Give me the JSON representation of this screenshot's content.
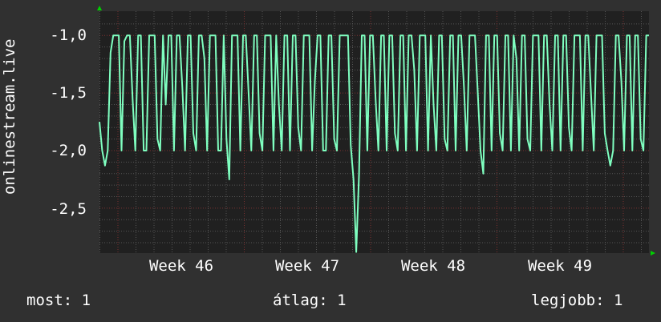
{
  "chart_data": {
    "type": "line",
    "title": "",
    "xlabel": "",
    "ylabel": "onlinestream.live",
    "x_tick_labels": [
      "Week 46",
      "Week 47",
      "Week 48",
      "Week 49"
    ],
    "y_ticks": [
      -1.0,
      -1.5,
      -2.0,
      -2.5
    ],
    "y_tick_labels": [
      "-1,0",
      "-1,5",
      "-2,0",
      "-2,5"
    ],
    "ylim": [
      -2.89,
      -0.79
    ],
    "grid": true,
    "colors": {
      "line": "#7fffc0",
      "background": "#303030",
      "plot": "#202020",
      "major_grid": "#7a3030",
      "minor_grid": "#555555",
      "arrow": "#00d000"
    },
    "series": [
      {
        "values": [
          -1.75,
          -2.0,
          -2.13,
          -2.0,
          -1.15,
          -1.0,
          -1.0,
          -1.0,
          -2.0,
          -1.05,
          -1.0,
          -1.0,
          -1.55,
          -2.0,
          -1.0,
          -1.0,
          -2.0,
          -2.0,
          -1.0,
          -1.0,
          -1.0,
          -1.9,
          -2.0,
          -1.0,
          -1.6,
          -1.0,
          -1.0,
          -2.0,
          -1.0,
          -1.0,
          -1.45,
          -2.0,
          -1.0,
          -1.0,
          -1.85,
          -2.0,
          -1.0,
          -1.0,
          -1.2,
          -2.0,
          -1.0,
          -1.0,
          -1.0,
          -2.0,
          -2.0,
          -1.0,
          -1.9,
          -2.25,
          -1.0,
          -1.0,
          -1.0,
          -2.0,
          -1.0,
          -1.0,
          -1.5,
          -2.0,
          -1.0,
          -1.0,
          -1.85,
          -2.0,
          -1.0,
          -1.0,
          -1.0,
          -2.0,
          -1.0,
          -1.6,
          -2.0,
          -1.0,
          -1.0,
          -2.0,
          -1.0,
          -1.0,
          -1.8,
          -2.0,
          -1.0,
          -1.0,
          -1.0,
          -2.0,
          -1.4,
          -1.0,
          -1.0,
          -2.0,
          -2.0,
          -1.0,
          -1.0,
          -1.9,
          -2.0,
          -1.0,
          -1.0,
          -1.0,
          -1.0,
          -1.95,
          -2.25,
          -2.88,
          -2.2,
          -1.0,
          -1.0,
          -2.0,
          -1.0,
          -1.0,
          -1.55,
          -2.0,
          -1.0,
          -1.0,
          -2.0,
          -1.0,
          -1.0,
          -1.85,
          -2.0,
          -1.0,
          -1.0,
          -2.0,
          -1.0,
          -1.0,
          -1.3,
          -2.0,
          -1.0,
          -1.0,
          -1.0,
          -2.0,
          -1.0,
          -1.6,
          -2.0,
          -1.0,
          -1.0,
          -1.9,
          -2.0,
          -1.0,
          -1.0,
          -2.0,
          -1.0,
          -1.0,
          -1.45,
          -2.0,
          -1.0,
          -1.0,
          -1.0,
          -1.5,
          -2.0,
          -2.2,
          -1.0,
          -1.0,
          -2.0,
          -1.0,
          -1.0,
          -1.85,
          -2.0,
          -1.0,
          -1.0,
          -2.0,
          -1.0,
          -1.2,
          -2.0,
          -1.0,
          -1.0,
          -1.9,
          -2.0,
          -1.0,
          -1.0,
          -1.0,
          -2.0,
          -1.0,
          -1.0,
          -1.6,
          -2.0,
          -1.0,
          -1.0,
          -2.0,
          -1.0,
          -1.0,
          -1.8,
          -2.0,
          -1.0,
          -1.0,
          -1.0,
          -2.0,
          -1.0,
          -1.0,
          -1.5,
          -2.0,
          -1.0,
          -1.0,
          -1.0,
          -1.85,
          -2.0,
          -2.13,
          -2.0,
          -1.0,
          -1.0,
          -1.4,
          -2.0,
          -1.0,
          -1.0,
          -2.0,
          -1.0,
          -1.0,
          -1.9,
          -2.0,
          -1.0,
          -1.0
        ]
      }
    ]
  },
  "legend": {
    "current": "most: 1",
    "average": "átlag: 1",
    "maximum": "legjobb: 1"
  }
}
